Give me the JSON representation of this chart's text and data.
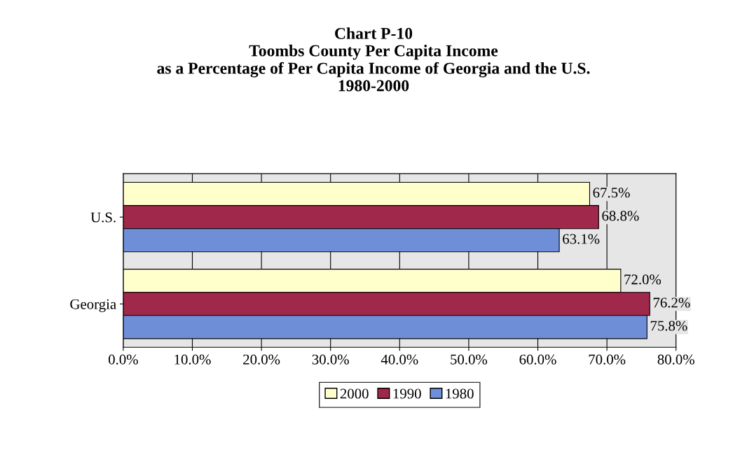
{
  "chart_data": {
    "type": "bar",
    "orientation": "horizontal",
    "title": "Chart P-10\nToombs County Per Capita Income\nas a Percentage of Per Capita Income of Georgia and the U.S.\n1980-2000",
    "categories": [
      "U.S.",
      "Georgia"
    ],
    "series": [
      {
        "name": "2000",
        "color": "#ffffcc",
        "values": [
          67.5,
          72.0
        ],
        "value_labels": [
          "67.5%",
          "72.0%"
        ]
      },
      {
        "name": "1990",
        "color": "#a0284a",
        "values": [
          68.8,
          76.2
        ],
        "value_labels": [
          "68.8%",
          "76.2%"
        ]
      },
      {
        "name": "1980",
        "color": "#6e8fd8",
        "values": [
          63.1,
          75.8
        ],
        "value_labels": [
          "63.1%",
          "75.8%"
        ]
      }
    ],
    "xlim": [
      0,
      80
    ],
    "xticks": [
      {
        "value": 0,
        "label": "0.0%"
      },
      {
        "value": 10,
        "label": "10.0%"
      },
      {
        "value": 20,
        "label": "20.0%"
      },
      {
        "value": 30,
        "label": "30.0%"
      },
      {
        "value": 40,
        "label": "40.0%"
      },
      {
        "value": 50,
        "label": "50.0%"
      },
      {
        "value": 60,
        "label": "60.0%"
      },
      {
        "value": 70,
        "label": "70.0%"
      },
      {
        "value": 80,
        "label": "80.0%"
      }
    ],
    "grid": "x",
    "legend": "bottom"
  }
}
